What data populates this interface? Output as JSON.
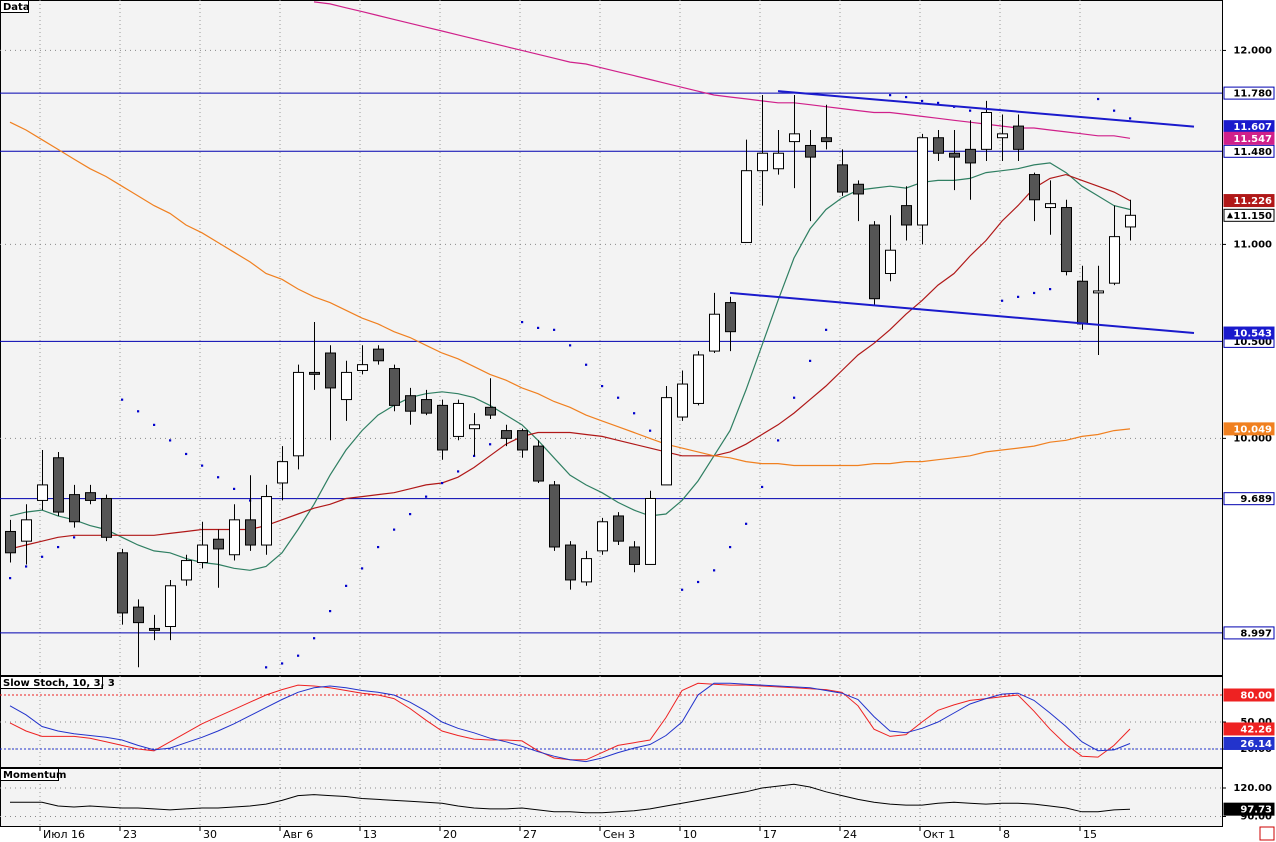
{
  "chart_data": [
    {
      "type": "candlestick",
      "title": "Data",
      "categories": [
        null,
        null,
        "Июл 16",
        null,
        null,
        null,
        null,
        "23",
        null,
        null,
        null,
        null,
        "30",
        null,
        null,
        null,
        null,
        "Авг 6",
        null,
        null,
        null,
        null,
        "13",
        null,
        null,
        null,
        null,
        "20",
        null,
        null,
        null,
        null,
        "27",
        null,
        null,
        null,
        null,
        "Сен 3",
        null,
        null,
        null,
        null,
        "10",
        null,
        null,
        null,
        null,
        "17",
        null,
        null,
        null,
        null,
        "24",
        null,
        null,
        null,
        null,
        "Окт 1",
        null,
        null,
        null,
        null,
        "8",
        null,
        null,
        null,
        null,
        "15",
        null,
        null,
        null
      ],
      "open": [
        9.52,
        9.47,
        9.68,
        9.9,
        9.71,
        9.72,
        9.69,
        9.41,
        9.13,
        9.02,
        9.03,
        9.27,
        9.36,
        9.48,
        9.4,
        9.58,
        9.45,
        9.77,
        9.91,
        10.34,
        10.44,
        10.2,
        10.35,
        10.46,
        10.36,
        10.22,
        10.2,
        10.17,
        10.01,
        10.05,
        10.16,
        10.04,
        10.04,
        9.96,
        9.76,
        9.45,
        9.26,
        9.42,
        9.6,
        9.44,
        9.35,
        9.76,
        10.11,
        10.18,
        10.45,
        10.7,
        11.01,
        11.38,
        11.39,
        11.53,
        11.51,
        11.55,
        11.41,
        11.31,
        11.1,
        10.85,
        11.2,
        11.1,
        11.55,
        11.47,
        11.49,
        11.49,
        11.55,
        11.61,
        11.36,
        11.19,
        11.19,
        10.81,
        10.75,
        10.8,
        11.09
      ],
      "high": [
        9.58,
        9.66,
        9.94,
        9.93,
        9.76,
        9.76,
        9.71,
        9.43,
        9.17,
        9.09,
        9.27,
        9.4,
        9.57,
        9.53,
        9.66,
        9.81,
        9.76,
        9.96,
        10.38,
        10.6,
        10.48,
        10.4,
        10.48,
        10.48,
        10.38,
        10.26,
        10.25,
        10.2,
        10.2,
        10.13,
        10.31,
        10.07,
        10.05,
        9.99,
        9.78,
        9.47,
        9.42,
        9.59,
        9.62,
        9.47,
        9.73,
        10.27,
        10.35,
        10.45,
        10.75,
        10.73,
        11.54,
        11.77,
        11.59,
        11.77,
        11.59,
        11.72,
        11.49,
        11.33,
        11.12,
        11.15,
        11.3,
        11.57,
        11.59,
        11.59,
        11.64,
        11.74,
        11.67,
        11.67,
        11.37,
        11.33,
        11.23,
        10.89,
        10.89,
        11.2,
        11.23
      ],
      "low": [
        9.36,
        9.35,
        9.63,
        9.6,
        9.54,
        9.66,
        9.47,
        9.04,
        8.82,
        8.96,
        8.96,
        9.24,
        9.33,
        9.23,
        9.37,
        9.42,
        9.4,
        9.68,
        9.84,
        10.25,
        9.99,
        10.09,
        10.33,
        10.38,
        10.14,
        10.07,
        10.12,
        9.89,
        9.99,
        9.91,
        10.1,
        9.96,
        9.9,
        9.77,
        9.42,
        9.22,
        9.24,
        9.4,
        9.45,
        9.31,
        9.35,
        9.76,
        10.09,
        10.17,
        10.44,
        10.45,
        11.01,
        11.2,
        11.36,
        11.29,
        11.12,
        11.49,
        11.25,
        11.12,
        10.69,
        10.81,
        11.02,
        11.0,
        11.43,
        11.28,
        11.23,
        11.43,
        11.43,
        11.43,
        11.12,
        11.05,
        10.84,
        10.56,
        10.43,
        10.79,
        11.02
      ],
      "close": [
        9.41,
        9.58,
        9.76,
        9.62,
        9.57,
        9.68,
        9.49,
        9.1,
        9.05,
        9.01,
        9.24,
        9.37,
        9.45,
        9.43,
        9.58,
        9.45,
        9.7,
        9.88,
        10.34,
        10.33,
        10.26,
        10.34,
        10.38,
        10.4,
        10.17,
        10.14,
        10.13,
        9.94,
        10.18,
        10.07,
        10.12,
        10.0,
        9.94,
        9.78,
        9.44,
        9.27,
        9.38,
        9.57,
        9.47,
        9.35,
        9.69,
        10.21,
        10.28,
        10.43,
        10.64,
        10.55,
        11.38,
        11.47,
        11.47,
        11.57,
        11.45,
        11.53,
        11.27,
        11.26,
        10.72,
        10.97,
        11.1,
        11.55,
        11.47,
        11.45,
        11.42,
        11.68,
        11.57,
        11.49,
        11.23,
        11.21,
        10.86,
        10.59,
        10.76,
        11.04,
        11.15
      ],
      "close_label": "11.150",
      "up_color": "#ffffff",
      "down_color": "#555555",
      "ylim": [
        8.78,
        12.26
      ],
      "yticks": [
        {
          "value": 10,
          "label": "10.000"
        },
        {
          "value": 11,
          "label": "11.000"
        },
        {
          "value": 12,
          "label": "12.000"
        }
      ],
      "grid": true,
      "lines": [
        {
          "color": "#2f7f62",
          "values": [
            9.6,
            9.62,
            9.63,
            9.6,
            9.58,
            9.55,
            9.53,
            9.49,
            9.45,
            9.42,
            9.41,
            9.38,
            9.36,
            9.35,
            9.33,
            9.32,
            9.34,
            9.41,
            9.53,
            9.66,
            9.81,
            9.94,
            10.04,
            10.12,
            10.17,
            10.21,
            10.23,
            10.24,
            10.23,
            10.21,
            10.17,
            10.12,
            10.07,
            9.99,
            9.9,
            9.81,
            9.76,
            9.72,
            9.67,
            9.63,
            9.6,
            9.61,
            9.68,
            9.78,
            9.91,
            10.04,
            10.25,
            10.48,
            10.71,
            10.93,
            11.08,
            11.18,
            11.24,
            11.28,
            11.29,
            11.3,
            11.29,
            11.32,
            11.33,
            11.33,
            11.34,
            11.37,
            11.38,
            11.39,
            11.41,
            11.42,
            11.37,
            11.3,
            11.25,
            11.2,
            11.18
          ]
        },
        {
          "color": "#b01818",
          "values": [
            9.43,
            9.45,
            9.47,
            9.49,
            9.5,
            9.5,
            9.5,
            9.5,
            9.5,
            9.5,
            9.51,
            9.52,
            9.53,
            9.53,
            9.53,
            9.53,
            9.55,
            9.58,
            9.61,
            9.64,
            9.66,
            9.69,
            9.7,
            9.71,
            9.72,
            9.74,
            9.76,
            9.77,
            9.8,
            9.85,
            9.91,
            9.97,
            10.01,
            10.03,
            10.03,
            10.03,
            10.02,
            10.01,
            9.99,
            9.97,
            9.95,
            9.93,
            9.91,
            9.91,
            9.91,
            9.93,
            9.97,
            10.02,
            10.07,
            10.13,
            10.2,
            10.27,
            10.35,
            10.43,
            10.49,
            10.56,
            10.64,
            10.71,
            10.79,
            10.85,
            10.94,
            11.02,
            11.12,
            11.2,
            11.29,
            11.34,
            11.36,
            11.33,
            11.3,
            11.27,
            11.226
          ],
          "last_label": "11.226"
        },
        {
          "color": "#f08020",
          "values": [
            11.63,
            11.59,
            11.54,
            11.49,
            11.44,
            11.39,
            11.35,
            11.3,
            11.25,
            11.2,
            11.16,
            11.1,
            11.06,
            11.01,
            10.96,
            10.91,
            10.85,
            10.82,
            10.77,
            10.73,
            10.7,
            10.66,
            10.62,
            10.59,
            10.55,
            10.52,
            10.48,
            10.44,
            10.41,
            10.37,
            10.33,
            10.3,
            10.26,
            10.23,
            10.19,
            10.16,
            10.12,
            10.09,
            10.06,
            10.03,
            10.0,
            9.97,
            9.95,
            9.93,
            9.91,
            9.9,
            9.88,
            9.87,
            9.87,
            9.86,
            9.86,
            9.86,
            9.86,
            9.86,
            9.87,
            9.87,
            9.88,
            9.88,
            9.89,
            9.9,
            9.91,
            9.93,
            9.94,
            9.95,
            9.96,
            9.98,
            9.99,
            10.01,
            10.02,
            10.04,
            10.049
          ],
          "last_label": "10.049"
        },
        {
          "color": "#d0208a",
          "values": [
            null,
            null,
            null,
            null,
            null,
            null,
            null,
            null,
            null,
            null,
            null,
            null,
            null,
            null,
            null,
            null,
            null,
            null,
            null,
            12.25,
            12.24,
            12.22,
            12.2,
            12.18,
            12.16,
            12.14,
            12.12,
            12.1,
            12.08,
            12.06,
            12.04,
            12.02,
            12.0,
            11.98,
            11.96,
            11.94,
            11.93,
            11.91,
            11.89,
            11.87,
            11.85,
            11.83,
            11.81,
            11.79,
            11.77,
            11.76,
            11.75,
            11.74,
            11.73,
            11.73,
            11.72,
            11.71,
            11.7,
            11.69,
            11.68,
            11.68,
            11.67,
            11.66,
            11.65,
            11.64,
            11.63,
            11.62,
            11.61,
            11.6,
            11.6,
            11.59,
            11.58,
            11.57,
            11.56,
            11.56,
            11.547
          ],
          "last_label": "11.547"
        }
      ],
      "dots": {
        "color": "#0000cc",
        "values": [
          9.28,
          9.34,
          9.39,
          9.44,
          9.49,
          null,
          null,
          10.2,
          10.14,
          10.07,
          9.99,
          9.92,
          9.86,
          9.8,
          9.74,
          9.68,
          8.82,
          8.84,
          8.88,
          8.97,
          9.11,
          9.24,
          9.33,
          9.44,
          9.53,
          9.61,
          9.7,
          9.77,
          9.83,
          9.91,
          9.97,
          null,
          10.6,
          10.57,
          10.56,
          10.48,
          10.38,
          10.27,
          10.21,
          10.13,
          10.04,
          null,
          9.22,
          9.26,
          9.32,
          9.44,
          9.56,
          9.75,
          9.99,
          10.21,
          10.4,
          10.56,
          null,
          null,
          null,
          11.77,
          11.76,
          11.74,
          11.73,
          11.71,
          11.69,
          null,
          10.71,
          10.73,
          10.75,
          10.77,
          null,
          null,
          11.75,
          11.69,
          11.65
        ]
      },
      "hline_color": "#0000b0",
      "hlines": [
        {
          "value": 11.78,
          "label": "11.780"
        },
        {
          "value": 11.48,
          "label": "11.480"
        },
        {
          "value": 10.5,
          "label": "10.500"
        },
        {
          "value": 9.689,
          "label": "9.689"
        },
        {
          "value": 8.997,
          "label": "8.997"
        }
      ],
      "trend_color": "#1a1acc",
      "trendlines": [
        {
          "x": [
            48,
            74
          ],
          "y": [
            11.79,
            11.607
          ],
          "label": "11.607"
        },
        {
          "x": [
            45,
            74
          ],
          "y": [
            10.75,
            10.543
          ],
          "label": "10.543"
        }
      ]
    },
    {
      "type": "line",
      "title": "Slow Stoch, 10, 3, 3",
      "series": [
        {
          "color": "#ee2222",
          "values": [
            49,
            40,
            34,
            34,
            34,
            32,
            28,
            24,
            20,
            18,
            28,
            38,
            48,
            56,
            64,
            72,
            80,
            86,
            91,
            90,
            88,
            85,
            82,
            80,
            76,
            65,
            52,
            40,
            35,
            31,
            30,
            30,
            29,
            18,
            10,
            8,
            8,
            16,
            24,
            27,
            30,
            55,
            85,
            93,
            92,
            91,
            91,
            90,
            89,
            88,
            87,
            86,
            83,
            68,
            42,
            34,
            36,
            50,
            63,
            69,
            74,
            76,
            78,
            80,
            62,
            42,
            25,
            12,
            11,
            24,
            42.26
          ],
          "last_label": "42.26"
        },
        {
          "color": "#2233cc",
          "values": [
            68,
            58,
            45,
            40,
            37,
            35,
            33,
            30,
            24,
            19,
            21,
            27,
            33,
            40,
            48,
            57,
            66,
            75,
            83,
            88,
            90,
            88,
            85,
            83,
            80,
            72,
            62,
            50,
            43,
            38,
            32,
            28,
            23,
            17,
            12,
            8,
            6,
            10,
            16,
            21,
            25,
            35,
            50,
            80,
            93,
            93,
            92,
            91,
            90,
            89,
            88,
            85,
            82,
            75,
            56,
            40,
            38,
            43,
            50,
            60,
            70,
            76,
            81,
            82,
            74,
            60,
            45,
            28,
            18,
            19,
            26.14
          ],
          "last_label": "26.14"
        }
      ],
      "ylim": [
        0,
        100
      ],
      "yticks": [
        {
          "value": 50,
          "label": "50.00"
        },
        {
          "value": 20,
          "label": "20.00"
        }
      ],
      "levels": [
        {
          "value": 80,
          "label": "80.00",
          "color": "#ee2222"
        },
        {
          "value": 20,
          "color": "#2233cc"
        }
      ]
    },
    {
      "type": "line",
      "title": "Momentum",
      "series": [
        {
          "color": "#000000",
          "values": [
            105,
            105,
            105,
            101,
            100,
            101,
            100,
            99,
            99,
            98,
            97,
            98,
            99,
            99,
            100,
            101,
            103,
            107,
            112,
            113,
            112,
            111,
            109,
            108,
            107,
            106,
            105,
            104,
            101,
            99,
            98,
            98,
            99,
            97,
            95,
            95,
            94,
            94,
            95,
            96,
            98,
            101,
            104,
            107,
            110,
            113,
            116,
            120,
            122,
            124,
            121,
            116,
            112,
            108,
            105,
            103,
            102,
            102,
            104,
            105,
            104,
            103,
            104,
            104,
            103,
            101,
            99,
            95,
            95,
            97,
            97.73
          ],
          "last_label": "97.73"
        }
      ],
      "ylim": [
        80,
        140
      ],
      "yticks": [
        {
          "value": 120,
          "label": "120.00"
        },
        {
          "value": 90,
          "label": "90.00"
        }
      ]
    }
  ]
}
